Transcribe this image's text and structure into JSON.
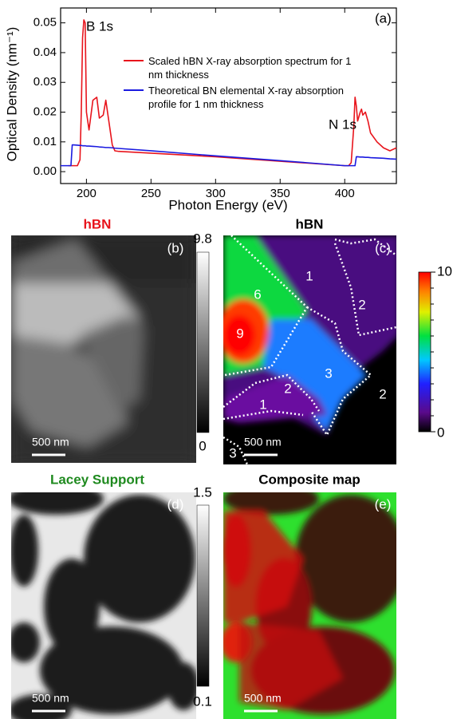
{
  "chart_data": {
    "type": "line",
    "panel_label": "(a)",
    "x_label": "Photon Energy (eV)",
    "y_label": "Optical Density (nm⁻¹)",
    "annotations": [
      "B 1s",
      "N 1s"
    ],
    "x": [
      180,
      186,
      188,
      189,
      190,
      193,
      195,
      196,
      197,
      198,
      199,
      200,
      202,
      205,
      208,
      210,
      213,
      215,
      217,
      220,
      222,
      225,
      250,
      300,
      350,
      400,
      403,
      405,
      407,
      408,
      409,
      410,
      412,
      413,
      414,
      416,
      418,
      420,
      425,
      430,
      435,
      440
    ],
    "series": [
      {
        "name": "Scaled hBN X-ray absorption spectrum for 1 nm thickness",
        "color": "#e8141c",
        "values": [
          null,
          0.002,
          0.002,
          0.002,
          0.002,
          0.002,
          0.004,
          0.02,
          0.045,
          0.051,
          0.05,
          0.02,
          0.014,
          0.024,
          0.025,
          0.018,
          0.019,
          0.024,
          0.018,
          0.009,
          0.007,
          0.0068,
          0.0062,
          0.005,
          0.0035,
          0.002,
          0.002,
          0.003,
          0.015,
          0.025,
          0.022,
          0.017,
          0.02,
          0.021,
          0.019,
          0.02,
          0.017,
          0.013,
          0.01,
          0.008,
          0.007,
          0.008
        ]
      },
      {
        "name": "Theoretical BN elemental X-ray absorption profile for 1 nm thickness",
        "color": "#1a1ae0",
        "values": [
          0.002,
          0.002,
          0.002,
          0.009,
          0.009,
          0.0089,
          0.0088,
          0.0088,
          0.0087,
          0.0087,
          0.0087,
          0.0086,
          0.0086,
          0.0085,
          0.0084,
          0.0083,
          0.0082,
          0.0081,
          0.0081,
          0.008,
          0.0079,
          0.0078,
          0.007,
          0.0053,
          0.0037,
          0.002,
          0.002,
          0.002,
          0.002,
          0.002,
          0.005,
          0.005,
          0.0049,
          0.0049,
          0.0049,
          0.0048,
          0.0048,
          0.0047,
          0.0046,
          0.0045,
          0.0043,
          0.0042
        ]
      }
    ],
    "xlim": [
      180,
      440
    ],
    "xticks": [
      200,
      250,
      300,
      350,
      400
    ],
    "ylim": [
      -0.004,
      0.055
    ],
    "yticks": [
      {
        "value": 0,
        "label": "0.00"
      },
      0.01,
      0.02,
      0.03,
      0.04,
      0.05
    ]
  },
  "panels": [
    {
      "label": "(b)",
      "title": "hBN",
      "scale_bar": "500 nm",
      "colorbar_ticks": [
        9.8,
        0
      ]
    },
    {
      "label": "(c)",
      "title": "hBN",
      "scale_bar": "500 nm",
      "colorbar_ticks": [
        10,
        0
      ],
      "regions": [
        6,
        1,
        2,
        9,
        3,
        2,
        1,
        2,
        3
      ]
    },
    {
      "label": "(d)",
      "title": "Lacey Support",
      "scale_bar": "500 nm",
      "colorbar_ticks": [
        1.5,
        0.1
      ]
    },
    {
      "label": "(e)",
      "title": "Composite map",
      "scale_bar": "500 nm"
    }
  ]
}
